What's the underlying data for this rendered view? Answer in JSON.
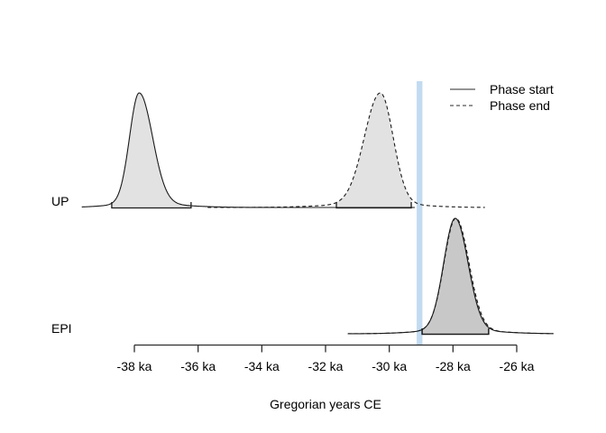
{
  "figure": {
    "background": "#ffffff"
  },
  "chart_data": {
    "type": "area",
    "description": "Posterior density curves of phase boundary estimates for two phases (UP, EPI); solid = phase start, dashed = phase end; shaded areas mark highest-density intervals; light blue vertical band at about -29 ka.",
    "title": "",
    "xlabel": "Gregorian years CE",
    "x_unit": "ka",
    "xlim_ka": [
      -39.7,
      -24.8
    ],
    "x_ticks_ka": [
      -38,
      -36,
      -34,
      -32,
      -30,
      -28,
      -26
    ],
    "x_tick_labels": [
      "-38 ka",
      "-36 ka",
      "-34 ka",
      "-32 ka",
      "-30 ka",
      "-28 ka",
      "-26 ka"
    ],
    "legend": [
      {
        "label": "Phase start",
        "line": "solid"
      },
      {
        "label": "Phase end",
        "line": "dashed"
      }
    ],
    "legend_position": "top-right",
    "grid": false,
    "highlight_band": {
      "center_ka": -29.05,
      "width_ka": 0.18,
      "color": "#bdd7ee"
    },
    "colors": {
      "curve": "#1a1a1a",
      "fill": "rgba(0,0,0,0.115)",
      "axis": "#2e2e2e",
      "legend_line": "#555555",
      "text": "#000000"
    },
    "rows": [
      {
        "label": "UP",
        "distributions": [
          {
            "phase": "start",
            "line": "solid",
            "mode_ka": -37.85,
            "sigma_left_ka": 0.3,
            "sigma_right_ka": 0.42,
            "hdi_ka": [
              -38.71,
              -36.22
            ],
            "support_ka": [
              -39.65,
              -29.2
            ]
          },
          {
            "phase": "end",
            "line": "dashed",
            "mode_ka": -30.28,
            "sigma_left_ka": 0.5,
            "sigma_right_ka": 0.4,
            "hdi_ka": [
              -31.66,
              -29.31
            ],
            "support_ka": [
              -35.7,
              -27.0
            ]
          }
        ]
      },
      {
        "label": "EPI",
        "distributions": [
          {
            "phase": "start",
            "line": "solid",
            "mode_ka": -27.93,
            "sigma_left_ka": 0.36,
            "sigma_right_ka": 0.4,
            "hdi_ka": [
              -28.97,
              -26.88
            ],
            "support_ka": [
              -31.3,
              -24.85
            ]
          },
          {
            "phase": "end",
            "line": "dashed",
            "mode_ka": -27.91,
            "sigma_left_ka": 0.37,
            "sigma_right_ka": 0.41,
            "hdi_ka": [
              -28.97,
              -26.88
            ],
            "support_ka": [
              -31.3,
              -24.85
            ]
          }
        ]
      }
    ]
  }
}
